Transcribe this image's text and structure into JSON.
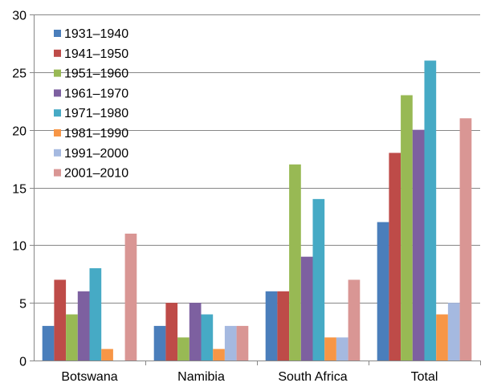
{
  "chart_data": {
    "type": "bar",
    "categories": [
      "Botswana",
      "Namibia",
      "South Africa",
      "Total"
    ],
    "series": [
      {
        "name": "1931–1940",
        "color": "#4a7ebb",
        "values": [
          3,
          3,
          6,
          12
        ]
      },
      {
        "name": "1941–1950",
        "color": "#be4b48",
        "values": [
          7,
          5,
          6,
          18
        ]
      },
      {
        "name": "1951–1960",
        "color": "#98b954",
        "values": [
          4,
          2,
          17,
          23
        ]
      },
      {
        "name": "1961–1970",
        "color": "#7d60a0",
        "values": [
          6,
          5,
          9,
          20
        ]
      },
      {
        "name": "1971–1980",
        "color": "#46aac5",
        "values": [
          8,
          4,
          14,
          26
        ]
      },
      {
        "name": "1981–1990",
        "color": "#f79646",
        "values": [
          1,
          1,
          2,
          4
        ]
      },
      {
        "name": "1991–2000",
        "color": "#a5b9e0",
        "values": [
          0,
          3,
          2,
          5
        ]
      },
      {
        "name": "2001–2010",
        "color": "#d99694",
        "values": [
          11,
          3,
          7,
          21
        ]
      }
    ],
    "ylim": [
      0,
      30
    ],
    "yticks": [
      0,
      5,
      10,
      15,
      20,
      25,
      30
    ],
    "grid": true,
    "legend_position": "top-left"
  }
}
